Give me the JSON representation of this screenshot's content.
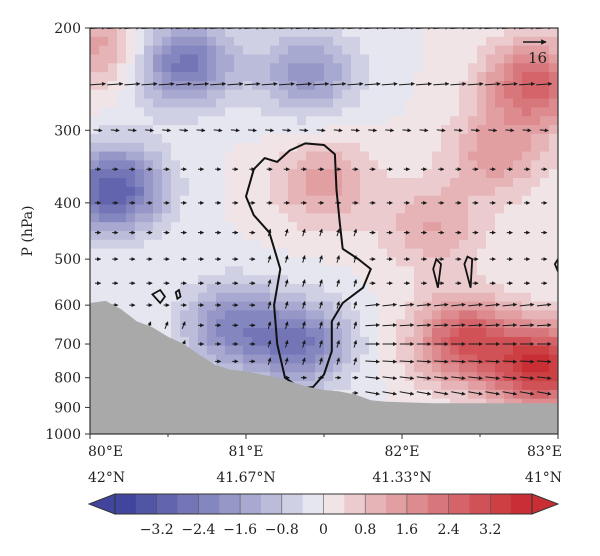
{
  "chart_data": {
    "type": "heatmap",
    "title": "",
    "ylabel": "P (hPa)",
    "xlabel": "",
    "y_scale": "log",
    "ylim": [
      1000,
      200
    ],
    "y_ticks": [
      200,
      300,
      400,
      500,
      600,
      700,
      800,
      900,
      1000
    ],
    "xlim": [
      80,
      83
    ],
    "x_ticks": [
      {
        "value": 80,
        "lon_label": "80°E",
        "lat_label": "42°N"
      },
      {
        "value": 81,
        "lon_label": "81°E",
        "lat_label": "41.67°N"
      },
      {
        "value": 82,
        "lon_label": "82°E",
        "lat_label": "41.33°N"
      },
      {
        "value": 83,
        "lon_label": "83°E",
        "lat_label": "41°N"
      }
    ],
    "colorbar": {
      "min": -4.0,
      "max": 4.0,
      "step": 0.4,
      "labels": [
        "−3.2",
        "−2.4",
        "−1.6",
        "−0.8",
        "0",
        "0.8",
        "1.6",
        "2.4",
        "3.2"
      ],
      "label_values": [
        -3.2,
        -2.4,
        -1.6,
        -0.8,
        0,
        0.8,
        1.6,
        2.4,
        3.2
      ],
      "neg_color": "#3a3d9a",
      "mid_color": "#f4f4f6",
      "pos_color": "#c6252a"
    },
    "vector_reference": {
      "label": "16",
      "value": 16
    },
    "terrain_color": "#a9a9a9",
    "contour_color": "#111111",
    "terrain_profile": [
      [
        80.0,
        595
      ],
      [
        80.1,
        590
      ],
      [
        80.2,
        610
      ],
      [
        80.3,
        640
      ],
      [
        80.4,
        655
      ],
      [
        80.5,
        680
      ],
      [
        80.6,
        700
      ],
      [
        80.7,
        730
      ],
      [
        80.8,
        760
      ],
      [
        80.9,
        775
      ],
      [
        81.0,
        780
      ],
      [
        81.1,
        790
      ],
      [
        81.2,
        800
      ],
      [
        81.3,
        815
      ],
      [
        81.4,
        830
      ],
      [
        81.5,
        840
      ],
      [
        81.6,
        845
      ],
      [
        81.7,
        855
      ],
      [
        81.8,
        875
      ],
      [
        81.9,
        880
      ],
      [
        82.0,
        882
      ],
      [
        82.2,
        885
      ],
      [
        82.5,
        885
      ],
      [
        83.0,
        885
      ]
    ],
    "anomaly_centers": [
      {
        "lon": 80.15,
        "p": 380,
        "value": -3.2
      },
      {
        "lon": 80.6,
        "p": 230,
        "value": -2.6
      },
      {
        "lon": 80.9,
        "p": 650,
        "value": -2.0
      },
      {
        "lon": 81.35,
        "p": 700,
        "value": -2.4
      },
      {
        "lon": 81.4,
        "p": 240,
        "value": -1.8
      },
      {
        "lon": 80.05,
        "p": 215,
        "value": 1.4
      },
      {
        "lon": 81.5,
        "p": 370,
        "value": 1.4
      },
      {
        "lon": 82.85,
        "p": 250,
        "value": 2.6
      },
      {
        "lon": 82.6,
        "p": 330,
        "value": 1.4
      },
      {
        "lon": 82.2,
        "p": 440,
        "value": 1.2
      },
      {
        "lon": 82.9,
        "p": 770,
        "value": 3.6
      },
      {
        "lon": 82.4,
        "p": 690,
        "value": 2.8
      }
    ],
    "contour_main": [
      [
        81.05,
        350
      ],
      [
        81.12,
        335
      ],
      [
        81.2,
        340
      ],
      [
        81.28,
        325
      ],
      [
        81.38,
        316
      ],
      [
        81.5,
        318
      ],
      [
        81.57,
        330
      ],
      [
        81.58,
        380
      ],
      [
        81.6,
        430
      ],
      [
        81.62,
        480
      ],
      [
        81.72,
        500
      ],
      [
        81.8,
        520
      ],
      [
        81.75,
        560
      ],
      [
        81.62,
        595
      ],
      [
        81.55,
        640
      ],
      [
        81.55,
        720
      ],
      [
        81.5,
        790
      ],
      [
        81.43,
        830
      ],
      [
        81.35,
        835
      ],
      [
        81.25,
        800
      ],
      [
        81.2,
        700
      ],
      [
        81.18,
        600
      ],
      [
        81.22,
        520
      ],
      [
        81.15,
        450
      ],
      [
        81.05,
        420
      ],
      [
        81.0,
        390
      ],
      [
        81.05,
        350
      ]
    ],
    "contour_small": [
      [
        [
          80.4,
          575
        ],
        [
          80.45,
          565
        ],
        [
          80.48,
          580
        ],
        [
          80.45,
          595
        ],
        [
          80.4,
          575
        ]
      ],
      [
        [
          80.55,
          570
        ],
        [
          80.57,
          565
        ],
        [
          80.58,
          580
        ],
        [
          80.56,
          585
        ],
        [
          80.55,
          570
        ]
      ],
      [
        [
          82.2,
          520
        ],
        [
          82.22,
          500
        ],
        [
          82.25,
          510
        ],
        [
          82.23,
          560
        ],
        [
          82.2,
          520
        ]
      ],
      [
        [
          82.4,
          510
        ],
        [
          82.42,
          495
        ],
        [
          82.45,
          500
        ],
        [
          82.44,
          560
        ],
        [
          82.4,
          510
        ]
      ],
      [
        [
          82.98,
          510
        ],
        [
          83.0,
          500
        ],
        [
          83.0,
          525
        ],
        [
          82.98,
          510
        ]
      ]
    ]
  }
}
